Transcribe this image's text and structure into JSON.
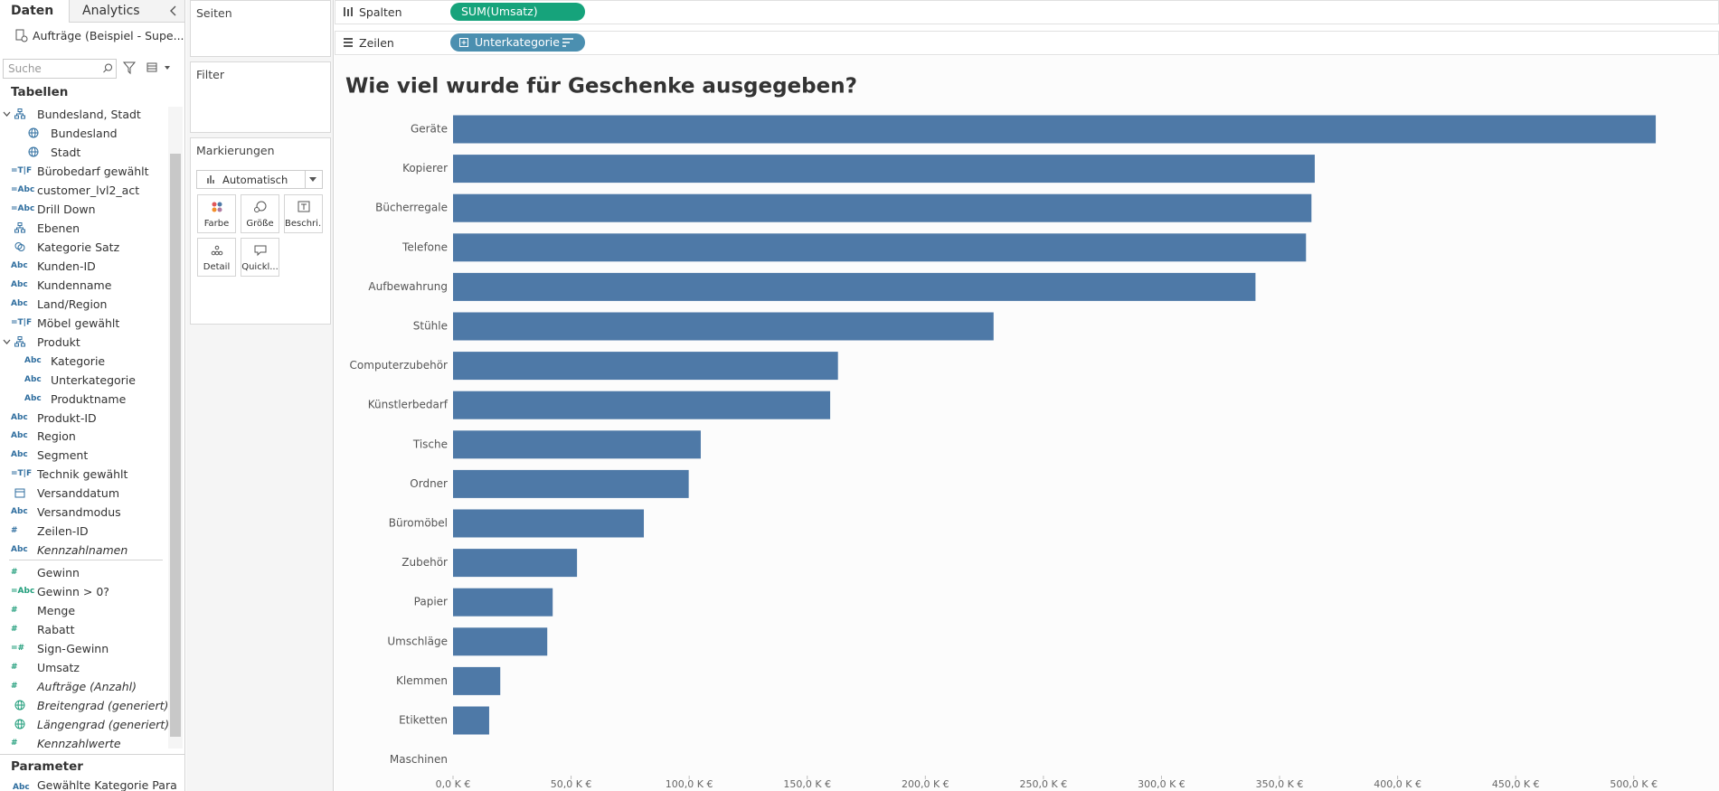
{
  "sidebar": {
    "tabs": [
      "Daten",
      "Analytics"
    ],
    "datasource": "Aufträge (Beispiel - Supe...",
    "search_placeholder": "Suche",
    "tables_header": "Tabellen",
    "fields": [
      {
        "label": "Bundesland, Stadt",
        "shape": "hierarchy",
        "level": 0,
        "expand": true,
        "role": "dimension"
      },
      {
        "label": "Bundesland",
        "shape": "globe",
        "level": 1,
        "role": "dimension"
      },
      {
        "label": "Stadt",
        "shape": "globe",
        "level": 1,
        "role": "dimension"
      },
      {
        "label": "Bürobedarf gewählt",
        "glyph": "=T|F",
        "level": 0,
        "role": "dimension"
      },
      {
        "label": "customer_lvl2_act",
        "glyph": "=Abc",
        "level": 0,
        "role": "dimension"
      },
      {
        "label": "Drill Down",
        "glyph": "=Abc",
        "level": 0,
        "role": "dimension"
      },
      {
        "label": "Ebenen",
        "shape": "hierarchy",
        "level": 0,
        "role": "dimension"
      },
      {
        "label": "Kategorie Satz",
        "shape": "set",
        "level": 0,
        "role": "dimension"
      },
      {
        "label": "Kunden-ID",
        "glyph": "Abc",
        "level": 0,
        "role": "dimension"
      },
      {
        "label": "Kundenname",
        "glyph": "Abc",
        "level": 0,
        "role": "dimension"
      },
      {
        "label": "Land/Region",
        "glyph": "Abc",
        "level": 0,
        "role": "dimension"
      },
      {
        "label": "Möbel gewählt",
        "glyph": "=T|F",
        "level": 0,
        "role": "dimension"
      },
      {
        "label": "Produkt",
        "shape": "hierarchy",
        "level": 0,
        "expand": true,
        "role": "dimension"
      },
      {
        "label": "Kategorie",
        "glyph": "Abc",
        "level": 1,
        "role": "dimension"
      },
      {
        "label": "Unterkategorie",
        "glyph": "Abc",
        "level": 1,
        "role": "dimension"
      },
      {
        "label": "Produktname",
        "glyph": "Abc",
        "level": 1,
        "role": "dimension"
      },
      {
        "label": "Produkt-ID",
        "glyph": "Abc",
        "level": 0,
        "role": "dimension"
      },
      {
        "label": "Region",
        "glyph": "Abc",
        "level": 0,
        "role": "dimension"
      },
      {
        "label": "Segment",
        "glyph": "Abc",
        "level": 0,
        "role": "dimension"
      },
      {
        "label": "Technik gewählt",
        "glyph": "=T|F",
        "level": 0,
        "role": "dimension"
      },
      {
        "label": "Versanddatum",
        "shape": "date",
        "level": 0,
        "role": "dimension"
      },
      {
        "label": "Versandmodus",
        "glyph": "Abc",
        "level": 0,
        "role": "dimension"
      },
      {
        "label": "Zeilen-ID",
        "glyph": "#",
        "level": 0,
        "role": "dimension"
      },
      {
        "label": "Kennzahlnamen",
        "glyph": "Abc",
        "level": 0,
        "italic": true,
        "role": "dimension"
      },
      {
        "label": "Gewinn",
        "glyph": "#",
        "level": 0,
        "role": "measure"
      },
      {
        "label": "Gewinn > 0?",
        "glyph": "=Abc",
        "level": 0,
        "role": "measure"
      },
      {
        "label": "Menge",
        "glyph": "#",
        "level": 0,
        "role": "measure"
      },
      {
        "label": "Rabatt",
        "glyph": "#",
        "level": 0,
        "role": "measure"
      },
      {
        "label": "Sign-Gewinn",
        "glyph": "=#",
        "level": 0,
        "role": "measure"
      },
      {
        "label": "Umsatz",
        "glyph": "#",
        "level": 0,
        "role": "measure"
      },
      {
        "label": "Aufträge (Anzahl)",
        "glyph": "#",
        "level": 0,
        "italic": true,
        "role": "measure"
      },
      {
        "label": "Breitengrad (generiert)",
        "shape": "globe",
        "level": 0,
        "italic": true,
        "role": "measure"
      },
      {
        "label": "Längengrad (generiert)",
        "shape": "globe",
        "level": 0,
        "italic": true,
        "role": "measure"
      },
      {
        "label": "Kennzahlwerte",
        "glyph": "#",
        "level": 0,
        "italic": true,
        "role": "measure"
      }
    ],
    "parameter_header": "Parameter",
    "parameter_glyph": "Abc",
    "parameter_item": "Gewählte Kategorie Para"
  },
  "cards": {
    "pages": "Seiten",
    "filter": "Filter",
    "marks": "Markierungen",
    "mark_type": "Automatisch",
    "buttons": [
      "Farbe",
      "Größe",
      "Beschri...",
      "Detail",
      "Quickl..."
    ]
  },
  "shelves": {
    "columns_label": "Spalten",
    "columns_pill": "SUM(Umsatz)",
    "rows_label": "Zeilen",
    "rows_pill": "Unterkategorie"
  },
  "chart_data": {
    "type": "hbar",
    "title": "Wie viel wurde für Geschenke ausgegeben?",
    "categories": [
      "Geräte",
      "Kopierer",
      "Bücherregale",
      "Telefone",
      "Aufbewahrung",
      "Stühle",
      "Computerzubehör",
      "Künstlerbedarf",
      "Tische",
      "Ordner",
      "Büromöbel",
      "Zubehör",
      "Papier",
      "Umschläge",
      "Klemmen",
      "Etiketten",
      "Maschinen"
    ],
    "values": [
      509300,
      364900,
      363500,
      361200,
      339800,
      228900,
      163000,
      159700,
      104900,
      99800,
      80800,
      52500,
      42200,
      39900,
      20000,
      15300,
      null
    ],
    "color": "#4e79a7",
    "xlim": [
      0,
      520000
    ],
    "xticks": [
      {
        "value": 0,
        "label": "0,0 K €"
      },
      {
        "value": 50000,
        "label": "50,0 K €"
      },
      {
        "value": 100000,
        "label": "100,0 K €"
      },
      {
        "value": 150000,
        "label": "150,0 K €"
      },
      {
        "value": 200000,
        "label": "200,0 K €"
      },
      {
        "value": 250000,
        "label": "250,0 K €"
      },
      {
        "value": 300000,
        "label": "300,0 K €"
      },
      {
        "value": 350000,
        "label": "350,0 K €"
      },
      {
        "value": 400000,
        "label": "400,0 K €"
      },
      {
        "value": 450000,
        "label": "450,0 K €"
      },
      {
        "value": 500000,
        "label": "500,0 K €"
      }
    ],
    "grid": false
  }
}
